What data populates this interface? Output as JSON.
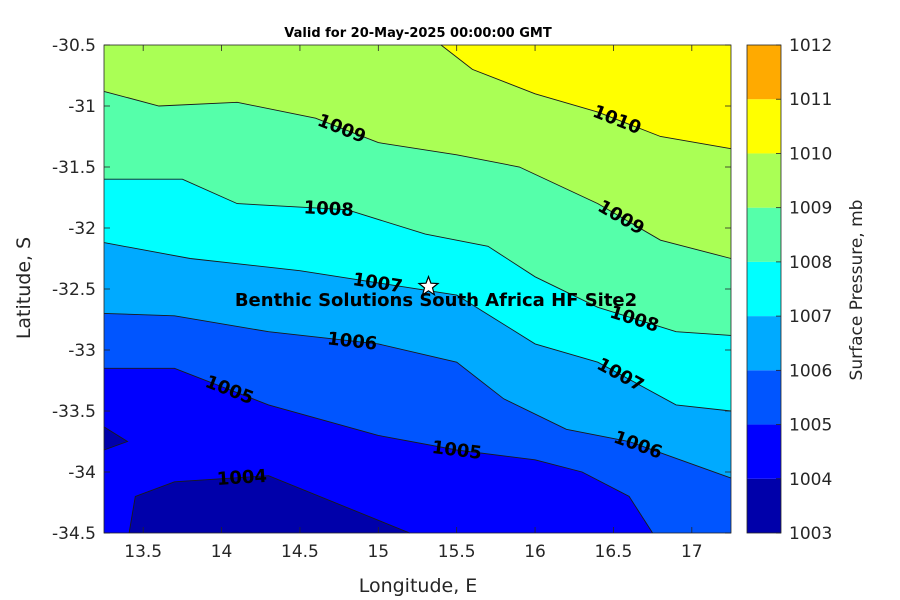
{
  "chart_data": {
    "type": "contour",
    "title": "Valid for 20-May-2025 00:00:00 GMT",
    "xlabel": "Longitude, E",
    "ylabel": "Latitude, S",
    "xlim": [
      13.25,
      17.25
    ],
    "ylim": [
      -34.5,
      -30.5
    ],
    "xticks": [
      13.5,
      14,
      14.5,
      15,
      15.5,
      16,
      16.5,
      17
    ],
    "yticks": [
      -30.5,
      -31,
      -31.5,
      -32,
      -32.5,
      -33,
      -33.5,
      -34,
      -34.5
    ],
    "colorbar": {
      "label": "Surface Pressure, mb",
      "ticks": [
        1003,
        1004,
        1005,
        1006,
        1007,
        1008,
        1009,
        1010,
        1011,
        1012
      ],
      "colors": [
        "#0000aa",
        "#0000ff",
        "#0055ff",
        "#00aaff",
        "#00ffff",
        "#55ff aa",
        "#aaff55",
        "#ffff00",
        "#ffaa00",
        "#ff5500"
      ]
    },
    "contours": [
      {
        "level": 1004,
        "label": "1004",
        "points": [
          [
            13.41,
            -34.5
          ],
          [
            13.45,
            -34.2
          ],
          [
            13.7,
            -34.08
          ],
          [
            14.3,
            -34.03
          ],
          [
            15.2,
            -34.5
          ]
        ]
      },
      {
        "level": 1004,
        "label": "",
        "points": [
          [
            13.25,
            -33.63
          ],
          [
            13.4,
            -33.75
          ],
          [
            13.25,
            -33.82
          ]
        ]
      },
      {
        "level": 1005,
        "label": "1005",
        "points": [
          [
            13.25,
            -33.15
          ],
          [
            13.7,
            -33.15
          ],
          [
            14.3,
            -33.45
          ],
          [
            15,
            -33.7
          ],
          [
            15.5,
            -33.82
          ],
          [
            16,
            -33.9
          ],
          [
            16.3,
            -34
          ],
          [
            16.6,
            -34.2
          ],
          [
            16.75,
            -34.5
          ]
        ]
      },
      {
        "level": 1006,
        "label": "1006",
        "points": [
          [
            13.25,
            -32.7
          ],
          [
            13.7,
            -32.72
          ],
          [
            14.3,
            -32.85
          ],
          [
            15,
            -32.95
          ],
          [
            15.5,
            -33.1
          ],
          [
            15.8,
            -33.4
          ],
          [
            16.2,
            -33.65
          ],
          [
            16.6,
            -33.75
          ],
          [
            17.25,
            -34.05
          ]
        ]
      },
      {
        "level": 1007,
        "label": "1007",
        "points": [
          [
            13.25,
            -32.12
          ],
          [
            13.8,
            -32.25
          ],
          [
            14.5,
            -32.35
          ],
          [
            15,
            -32.45
          ],
          [
            15.5,
            -32.55
          ],
          [
            16,
            -32.95
          ],
          [
            16.4,
            -33.1
          ],
          [
            16.9,
            -33.45
          ],
          [
            17.25,
            -33.5
          ]
        ]
      },
      {
        "level": 1008,
        "label": "1008",
        "points": [
          [
            13.25,
            -31.6
          ],
          [
            13.75,
            -31.6
          ],
          [
            14.1,
            -31.8
          ],
          [
            14.8,
            -31.85
          ],
          [
            15.3,
            -32.05
          ],
          [
            15.7,
            -32.15
          ],
          [
            16,
            -32.4
          ],
          [
            16.4,
            -32.65
          ],
          [
            16.9,
            -32.85
          ],
          [
            17.25,
            -32.88
          ]
        ]
      },
      {
        "level": 1009,
        "label": "1009",
        "points": [
          [
            13.25,
            -30.88
          ],
          [
            13.6,
            -31
          ],
          [
            14.1,
            -30.97
          ],
          [
            14.6,
            -31.1
          ],
          [
            15,
            -31.3
          ],
          [
            15.5,
            -31.4
          ],
          [
            15.9,
            -31.5
          ],
          [
            16.4,
            -31.8
          ],
          [
            16.8,
            -32.1
          ],
          [
            17.25,
            -32.25
          ]
        ]
      },
      {
        "level": 1010,
        "label": "1010",
        "points": [
          [
            15.4,
            -30.5
          ],
          [
            15.6,
            -30.7
          ],
          [
            16,
            -30.9
          ],
          [
            16.4,
            -31.05
          ],
          [
            16.8,
            -31.25
          ],
          [
            17.25,
            -31.35
          ]
        ]
      }
    ],
    "marker": {
      "lon": 15.32,
      "lat": -32.48,
      "label": "Benthic Solutions South Africa HF Site2"
    }
  }
}
